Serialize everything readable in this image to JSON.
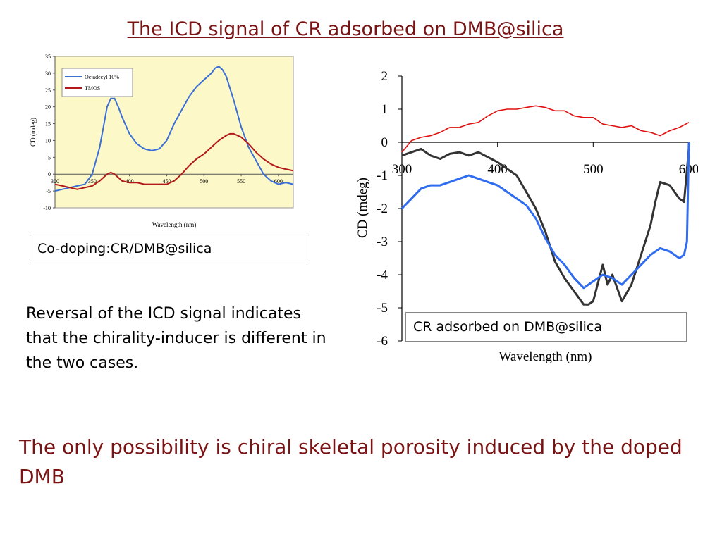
{
  "slide": {
    "title": "The ICD signal of CR adsorbed on DMB@silica",
    "left_caption": "Co-doping:CR/DMB@silica",
    "right_caption": "CR adsorbed on DMB@silica",
    "body_text": "Reversal of the ICD signal indicates that the chirality-inducer is different in the two cases.",
    "conclusion": "The only possibility is chiral skeletal porosity induced by the doped DMB",
    "colors": {
      "title": "#7a1414",
      "left_plot_bg": "#fdf8c8",
      "blue": "#3a6fd8",
      "red_dark": "#b21a1a",
      "red": "#e01010",
      "black": "#333333",
      "blue_bright": "#2f6cf0"
    }
  },
  "chart_data": [
    {
      "type": "line",
      "title": "",
      "xlabel": "Wavelength (nm)",
      "ylabel": "CD (mdeg)",
      "xlim": [
        300,
        620
      ],
      "ylim": [
        -10,
        35
      ],
      "xticks": [
        300,
        350,
        400,
        450,
        500,
        550,
        600
      ],
      "yticks": [
        -10,
        -5,
        0,
        5,
        10,
        15,
        20,
        25,
        30,
        35
      ],
      "x_axis_at": 0,
      "grid": false,
      "legend": "top-left",
      "series": [
        {
          "name": "Octadecyl 10%",
          "color": "#3a6fd8",
          "x": [
            300,
            310,
            320,
            330,
            340,
            350,
            360,
            365,
            370,
            375,
            380,
            385,
            390,
            400,
            410,
            420,
            430,
            440,
            450,
            460,
            470,
            480,
            490,
            500,
            510,
            515,
            520,
            525,
            530,
            540,
            550,
            560,
            570,
            580,
            590,
            600,
            610,
            620
          ],
          "y": [
            -5,
            -4.5,
            -4,
            -3.5,
            -3,
            0,
            8,
            14,
            20,
            22.5,
            22.5,
            20,
            17,
            12,
            9,
            7.5,
            7,
            7.5,
            10,
            15,
            19,
            23,
            26,
            28,
            30,
            31.5,
            32,
            31,
            29,
            22,
            14,
            8,
            4,
            0,
            -2,
            -3,
            -2.5,
            -3
          ]
        },
        {
          "name": "TMOS",
          "color": "#b21a1a",
          "x": [
            300,
            310,
            320,
            330,
            340,
            350,
            360,
            370,
            375,
            380,
            385,
            390,
            400,
            410,
            420,
            430,
            440,
            450,
            460,
            470,
            480,
            490,
            500,
            510,
            520,
            530,
            535,
            540,
            550,
            560,
            570,
            580,
            590,
            600,
            610,
            620
          ],
          "y": [
            -3,
            -3.5,
            -4,
            -4.5,
            -4,
            -3.5,
            -2,
            0,
            0.5,
            0,
            -1,
            -2,
            -2.5,
            -2.5,
            -3,
            -3,
            -3,
            -3,
            -2,
            0,
            2.5,
            4.5,
            6,
            8,
            10,
            11.5,
            12,
            12,
            11,
            9,
            6.5,
            4.5,
            3,
            2,
            1.5,
            1
          ]
        }
      ]
    },
    {
      "type": "line",
      "title": "",
      "xlabel": "Wavelength (nm)",
      "ylabel": "CD (mdeg)",
      "xlim": [
        300,
        600
      ],
      "ylim": [
        -6,
        2
      ],
      "xticks": [
        300,
        400,
        500,
        600
      ],
      "yticks": [
        -6,
        -5,
        -4,
        -3,
        -2,
        -1,
        0,
        1,
        2
      ],
      "x_axis_at": 0,
      "grid": false,
      "series": [
        {
          "color": "#e01010",
          "x": [
            300,
            310,
            320,
            330,
            340,
            350,
            360,
            370,
            380,
            390,
            400,
            410,
            420,
            430,
            440,
            450,
            460,
            470,
            480,
            490,
            500,
            510,
            520,
            530,
            540,
            550,
            560,
            570,
            580,
            590,
            600
          ],
          "y": [
            -0.3,
            0.05,
            0.15,
            0.2,
            0.3,
            0.45,
            0.45,
            0.55,
            0.6,
            0.8,
            0.95,
            1.0,
            1.0,
            1.05,
            1.1,
            1.05,
            0.95,
            0.95,
            0.8,
            0.75,
            0.75,
            0.55,
            0.5,
            0.45,
            0.5,
            0.35,
            0.3,
            0.2,
            0.35,
            0.45,
            0.6
          ]
        },
        {
          "color": "#333333",
          "x": [
            300,
            310,
            320,
            330,
            340,
            350,
            360,
            370,
            380,
            390,
            400,
            410,
            420,
            430,
            440,
            450,
            460,
            470,
            480,
            490,
            495,
            500,
            510,
            515,
            520,
            530,
            540,
            550,
            560,
            565,
            570,
            580,
            590,
            595,
            600
          ],
          "y": [
            -0.4,
            -0.3,
            -0.2,
            -0.4,
            -0.5,
            -0.35,
            -0.3,
            -0.4,
            -0.3,
            -0.45,
            -0.6,
            -0.8,
            -1.0,
            -1.5,
            -2.0,
            -2.7,
            -3.6,
            -4.1,
            -4.5,
            -4.9,
            -4.9,
            -4.8,
            -3.7,
            -4.3,
            -4.0,
            -4.8,
            -4.3,
            -3.4,
            -2.5,
            -1.8,
            -1.2,
            -1.3,
            -1.7,
            -1.8,
            -0.2
          ]
        },
        {
          "color": "#2f6cf0",
          "x": [
            300,
            310,
            320,
            330,
            340,
            350,
            360,
            370,
            380,
            390,
            400,
            410,
            420,
            430,
            440,
            450,
            460,
            470,
            480,
            490,
            500,
            510,
            520,
            530,
            540,
            550,
            560,
            570,
            580,
            590,
            595,
            598,
            600
          ],
          "y": [
            -2.0,
            -1.7,
            -1.4,
            -1.3,
            -1.3,
            -1.2,
            -1.1,
            -1.0,
            -1.1,
            -1.2,
            -1.3,
            -1.5,
            -1.7,
            -1.9,
            -2.3,
            -2.9,
            -3.4,
            -3.7,
            -4.1,
            -4.4,
            -4.2,
            -4.0,
            -4.1,
            -4.3,
            -4.0,
            -3.7,
            -3.4,
            -3.2,
            -3.3,
            -3.5,
            -3.4,
            -3.0,
            0
          ]
        }
      ]
    }
  ]
}
